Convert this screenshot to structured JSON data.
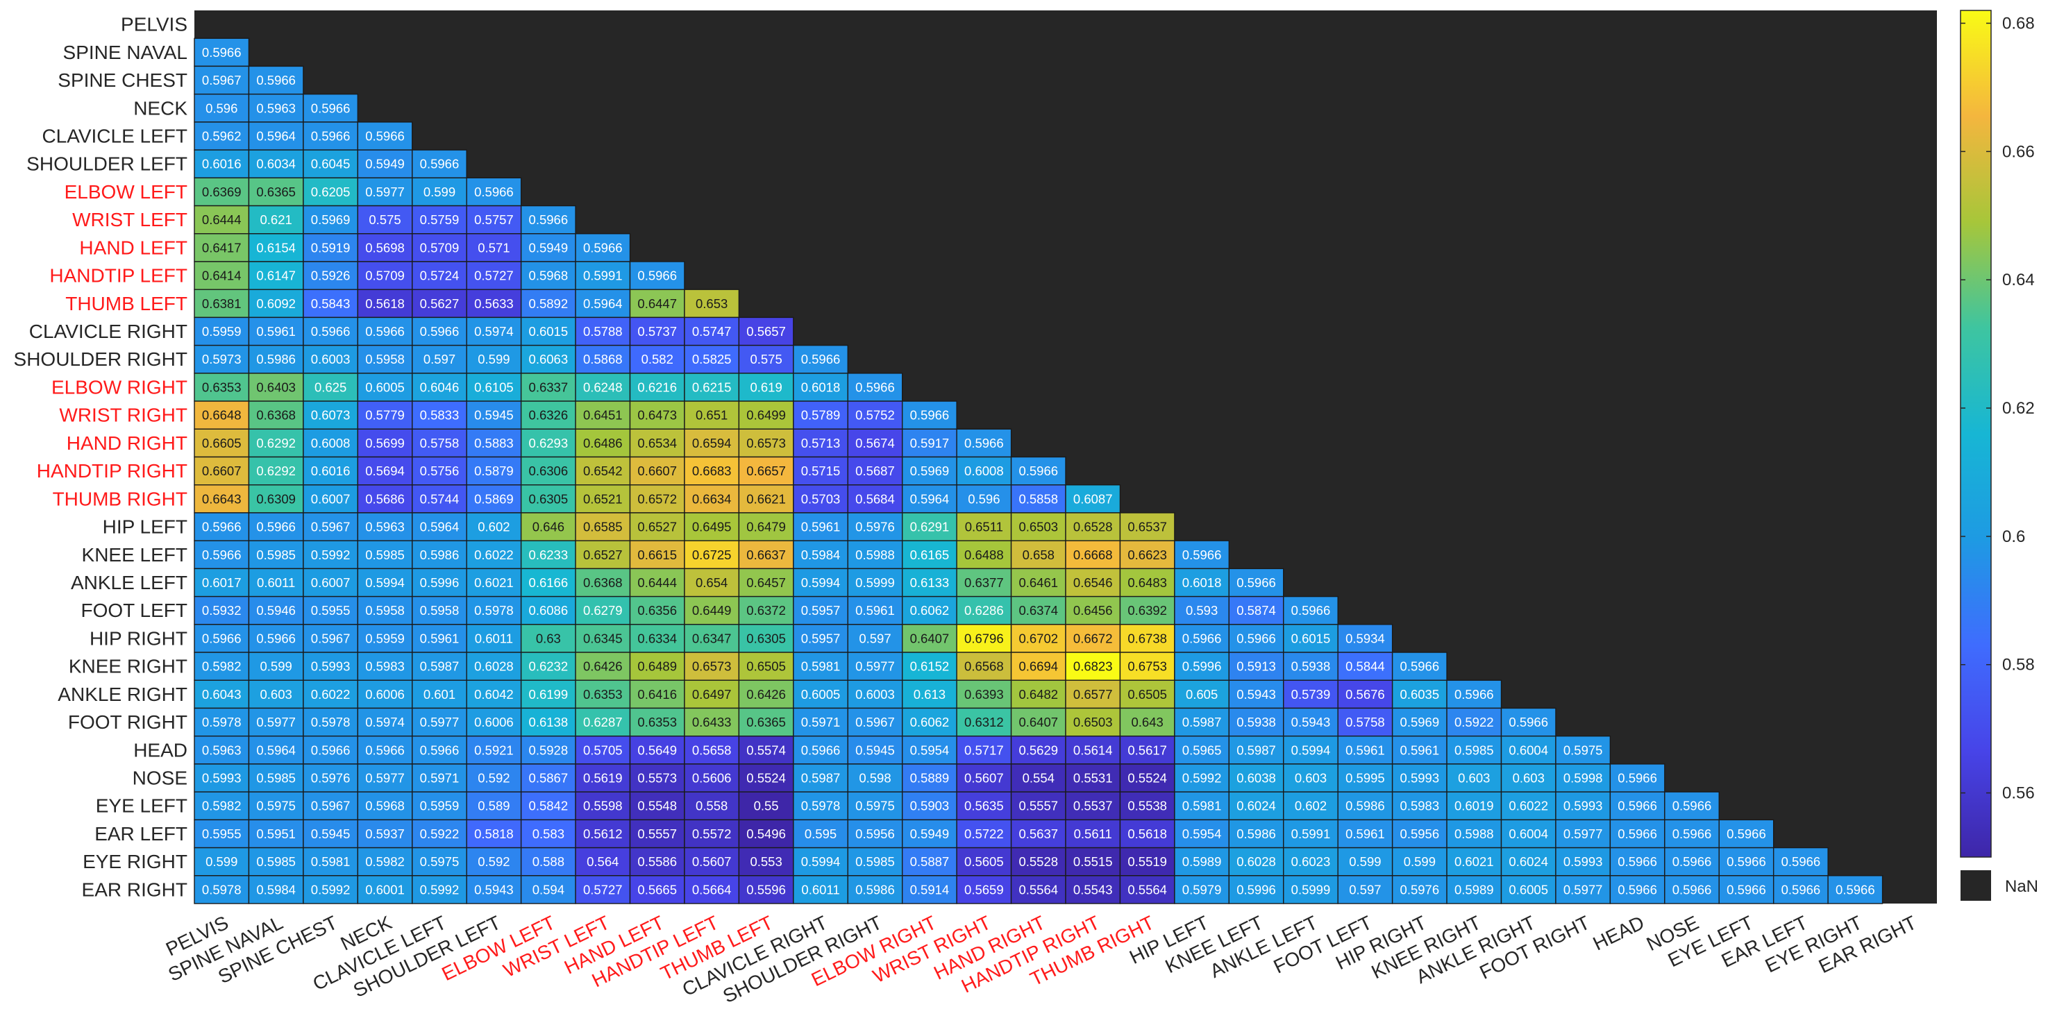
{
  "chart_data": {
    "type": "heatmap",
    "title": "",
    "xlabel": "",
    "ylabel": "",
    "labels": [
      "PELVIS",
      "SPINE NAVAL",
      "SPINE CHEST",
      "NECK",
      "CLAVICLE LEFT",
      "SHOULDER LEFT",
      "ELBOW LEFT",
      "WRIST LEFT",
      "HAND LEFT",
      "HANDTIP LEFT",
      "THUMB LEFT",
      "CLAVICLE RIGHT",
      "SHOULDER RIGHT",
      "ELBOW RIGHT",
      "WRIST RIGHT",
      "HAND RIGHT",
      "HANDTIP RIGHT",
      "THUMB RIGHT",
      "HIP LEFT",
      "KNEE LEFT",
      "ANKLE LEFT",
      "FOOT LEFT",
      "HIP RIGHT",
      "KNEE RIGHT",
      "ANKLE RIGHT",
      "FOOT RIGHT",
      "HEAD",
      "NOSE",
      "EYE LEFT",
      "EAR LEFT",
      "EYE RIGHT",
      "EAR RIGHT"
    ],
    "highlighted_labels": [
      "ELBOW LEFT",
      "WRIST LEFT",
      "HAND LEFT",
      "HANDTIP LEFT",
      "THUMB LEFT",
      "ELBOW RIGHT",
      "WRIST RIGHT",
      "HAND RIGHT",
      "HANDTIP RIGHT",
      "THUMB RIGHT"
    ],
    "highlight_color": "#ff1a1a",
    "values": [
      [],
      [
        "0.5966"
      ],
      [
        "0.5967",
        "0.5966"
      ],
      [
        "0.596",
        "0.5963",
        "0.5966"
      ],
      [
        "0.5962",
        "0.5964",
        "0.5966",
        "0.5966"
      ],
      [
        "0.6016",
        "0.6034",
        "0.6045",
        "0.5949",
        "0.5966"
      ],
      [
        "0.6369",
        "0.6365",
        "0.6205",
        "0.5977",
        "0.599",
        "0.5966"
      ],
      [
        "0.6444",
        "0.621",
        "0.5969",
        "0.575",
        "0.5759",
        "0.5757",
        "0.5966"
      ],
      [
        "0.6417",
        "0.6154",
        "0.5919",
        "0.5698",
        "0.5709",
        "0.571",
        "0.5949",
        "0.5966"
      ],
      [
        "0.6414",
        "0.6147",
        "0.5926",
        "0.5709",
        "0.5724",
        "0.5727",
        "0.5968",
        "0.5991",
        "0.5966"
      ],
      [
        "0.6381",
        "0.6092",
        "0.5843",
        "0.5618",
        "0.5627",
        "0.5633",
        "0.5892",
        "0.5964",
        "0.6447",
        "0.653"
      ],
      [
        "0.5959",
        "0.5961",
        "0.5966",
        "0.5966",
        "0.5966",
        "0.5974",
        "0.6015",
        "0.5788",
        "0.5737",
        "0.5747",
        "0.5657"
      ],
      [
        "0.5973",
        "0.5986",
        "0.6003",
        "0.5958",
        "0.597",
        "0.599",
        "0.6063",
        "0.5868",
        "0.582",
        "0.5825",
        "0.575",
        "0.5966"
      ],
      [
        "0.6353",
        "0.6403",
        "0.625",
        "0.6005",
        "0.6046",
        "0.6105",
        "0.6337",
        "0.6248",
        "0.6216",
        "0.6215",
        "0.619",
        "0.6018",
        "0.5966"
      ],
      [
        "0.6648",
        "0.6368",
        "0.6073",
        "0.5779",
        "0.5833",
        "0.5945",
        "0.6326",
        "0.6451",
        "0.6473",
        "0.651",
        "0.6499",
        "0.5789",
        "0.5752",
        "0.5966"
      ],
      [
        "0.6605",
        "0.6292",
        "0.6008",
        "0.5699",
        "0.5758",
        "0.5883",
        "0.6293",
        "0.6486",
        "0.6534",
        "0.6594",
        "0.6573",
        "0.5713",
        "0.5674",
        "0.5917",
        "0.5966"
      ],
      [
        "0.6607",
        "0.6292",
        "0.6016",
        "0.5694",
        "0.5756",
        "0.5879",
        "0.6306",
        "0.6542",
        "0.6607",
        "0.6683",
        "0.6657",
        "0.5715",
        "0.5687",
        "0.5969",
        "0.6008",
        "0.5966"
      ],
      [
        "0.6643",
        "0.6309",
        "0.6007",
        "0.5686",
        "0.5744",
        "0.5869",
        "0.6305",
        "0.6521",
        "0.6572",
        "0.6634",
        "0.6621",
        "0.5703",
        "0.5684",
        "0.5964",
        "0.596",
        "0.5858",
        "0.6087"
      ],
      [
        "0.5966",
        "0.5966",
        "0.5967",
        "0.5963",
        "0.5964",
        "0.602",
        "0.646",
        "0.6585",
        "0.6527",
        "0.6495",
        "0.6479",
        "0.5961",
        "0.5976",
        "0.6291",
        "0.6511",
        "0.6503",
        "0.6528",
        "0.6537"
      ],
      [
        "0.5966",
        "0.5985",
        "0.5992",
        "0.5985",
        "0.5986",
        "0.6022",
        "0.6233",
        "0.6527",
        "0.6615",
        "0.6725",
        "0.6637",
        "0.5984",
        "0.5988",
        "0.6165",
        "0.6488",
        "0.658",
        "0.6668",
        "0.6623",
        "0.5966"
      ],
      [
        "0.6017",
        "0.6011",
        "0.6007",
        "0.5994",
        "0.5996",
        "0.6021",
        "0.6166",
        "0.6368",
        "0.6444",
        "0.654",
        "0.6457",
        "0.5994",
        "0.5999",
        "0.6133",
        "0.6377",
        "0.6461",
        "0.6546",
        "0.6483",
        "0.6018",
        "0.5966"
      ],
      [
        "0.5932",
        "0.5946",
        "0.5955",
        "0.5958",
        "0.5958",
        "0.5978",
        "0.6086",
        "0.6279",
        "0.6356",
        "0.6449",
        "0.6372",
        "0.5957",
        "0.5961",
        "0.6062",
        "0.6286",
        "0.6374",
        "0.6456",
        "0.6392",
        "0.593",
        "0.5874",
        "0.5966"
      ],
      [
        "0.5966",
        "0.5966",
        "0.5967",
        "0.5959",
        "0.5961",
        "0.6011",
        "0.63",
        "0.6345",
        "0.6334",
        "0.6347",
        "0.6305",
        "0.5957",
        "0.597",
        "0.6407",
        "0.6796",
        "0.6702",
        "0.6672",
        "0.6738",
        "0.5966",
        "0.5966",
        "0.6015",
        "0.5934"
      ],
      [
        "0.5982",
        "0.599",
        "0.5993",
        "0.5983",
        "0.5987",
        "0.6028",
        "0.6232",
        "0.6426",
        "0.6489",
        "0.6573",
        "0.6505",
        "0.5981",
        "0.5977",
        "0.6152",
        "0.6568",
        "0.6694",
        "0.6823",
        "0.6753",
        "0.5996",
        "0.5913",
        "0.5938",
        "0.5844",
        "0.5966"
      ],
      [
        "0.6043",
        "0.603",
        "0.6022",
        "0.6006",
        "0.601",
        "0.6042",
        "0.6199",
        "0.6353",
        "0.6416",
        "0.6497",
        "0.6426",
        "0.6005",
        "0.6003",
        "0.613",
        "0.6393",
        "0.6482",
        "0.6577",
        "0.6505",
        "0.605",
        "0.5943",
        "0.5739",
        "0.5676",
        "0.6035",
        "0.5966"
      ],
      [
        "0.5978",
        "0.5977",
        "0.5978",
        "0.5974",
        "0.5977",
        "0.6006",
        "0.6138",
        "0.6287",
        "0.6353",
        "0.6433",
        "0.6365",
        "0.5971",
        "0.5967",
        "0.6062",
        "0.6312",
        "0.6407",
        "0.6503",
        "0.643",
        "0.5987",
        "0.5938",
        "0.5943",
        "0.5758",
        "0.5969",
        "0.5922",
        "0.5966"
      ],
      [
        "0.5963",
        "0.5964",
        "0.5966",
        "0.5966",
        "0.5966",
        "0.5921",
        "0.5928",
        "0.5705",
        "0.5649",
        "0.5658",
        "0.5574",
        "0.5966",
        "0.5945",
        "0.5954",
        "0.5717",
        "0.5629",
        "0.5614",
        "0.5617",
        "0.5965",
        "0.5987",
        "0.5994",
        "0.5961",
        "0.5961",
        "0.5985",
        "0.6004",
        "0.5975"
      ],
      [
        "0.5993",
        "0.5985",
        "0.5976",
        "0.5977",
        "0.5971",
        "0.592",
        "0.5867",
        "0.5619",
        "0.5573",
        "0.5606",
        "0.5524",
        "0.5987",
        "0.598",
        "0.5889",
        "0.5607",
        "0.554",
        "0.5531",
        "0.5524",
        "0.5992",
        "0.6038",
        "0.603",
        "0.5995",
        "0.5993",
        "0.603",
        "0.603",
        "0.5998",
        "0.5966"
      ],
      [
        "0.5982",
        "0.5975",
        "0.5967",
        "0.5968",
        "0.5959",
        "0.589",
        "0.5842",
        "0.5598",
        "0.5548",
        "0.558",
        "0.55",
        "0.5978",
        "0.5975",
        "0.5903",
        "0.5635",
        "0.5557",
        "0.5537",
        "0.5538",
        "0.5981",
        "0.6024",
        "0.602",
        "0.5986",
        "0.5983",
        "0.6019",
        "0.6022",
        "0.5993",
        "0.5966",
        "0.5966"
      ],
      [
        "0.5955",
        "0.5951",
        "0.5945",
        "0.5937",
        "0.5922",
        "0.5818",
        "0.583",
        "0.5612",
        "0.5557",
        "0.5572",
        "0.5496",
        "0.595",
        "0.5956",
        "0.5949",
        "0.5722",
        "0.5637",
        "0.5611",
        "0.5618",
        "0.5954",
        "0.5986",
        "0.5991",
        "0.5961",
        "0.5956",
        "0.5988",
        "0.6004",
        "0.5977",
        "0.5966",
        "0.5966",
        "0.5966"
      ],
      [
        "0.599",
        "0.5985",
        "0.5981",
        "0.5982",
        "0.5975",
        "0.592",
        "0.588",
        "0.564",
        "0.5586",
        "0.5607",
        "0.553",
        "0.5994",
        "0.5985",
        "0.5887",
        "0.5605",
        "0.5528",
        "0.5515",
        "0.5519",
        "0.5989",
        "0.6028",
        "0.6023",
        "0.599",
        "0.599",
        "0.6021",
        "0.6024",
        "0.5993",
        "0.5966",
        "0.5966",
        "0.5966",
        "0.5966"
      ],
      [
        "0.5978",
        "0.5984",
        "0.5992",
        "0.6001",
        "0.5992",
        "0.5943",
        "0.594",
        "0.5727",
        "0.5665",
        "0.5664",
        "0.5596",
        "0.6011",
        "0.5986",
        "0.5914",
        "0.5659",
        "0.5564",
        "0.5543",
        "0.5564",
        "0.5979",
        "0.5996",
        "0.5999",
        "0.597",
        "0.5976",
        "0.5989",
        "0.6005",
        "0.5977",
        "0.5966",
        "0.5966",
        "0.5966",
        "0.5966",
        "0.5966"
      ]
    ],
    "colorbar": {
      "colormap": "parula",
      "range": [
        0.55,
        0.682
      ],
      "ticks": [
        "0.56",
        "0.58",
        "0.6",
        "0.62",
        "0.64",
        "0.66",
        "0.68"
      ]
    },
    "nan_label": "NaN",
    "nan_color": "#262626"
  }
}
